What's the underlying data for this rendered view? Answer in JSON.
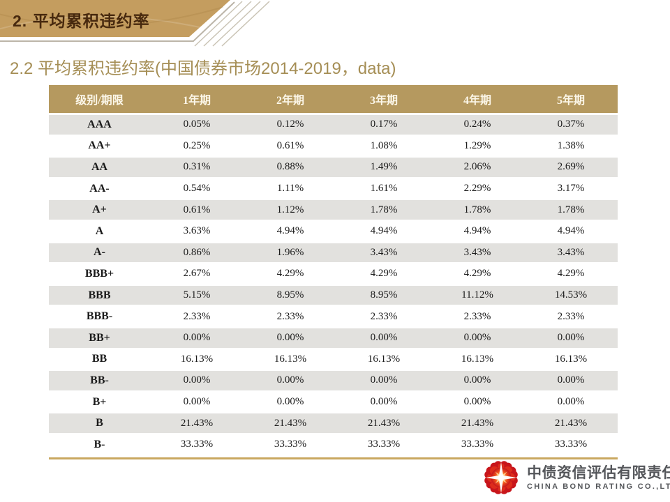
{
  "banner": {
    "title": "2. 平均累积违约率"
  },
  "subtitle": "2.2 平均累积违约率(中国债券市场2014-2019，data)",
  "table": {
    "headers": [
      "级别/期限",
      "1年期",
      "2年期",
      "3年期",
      "4年期",
      "5年期"
    ],
    "rows": [
      {
        "label": "AAA",
        "values": [
          "0.05%",
          "0.12%",
          "0.17%",
          "0.24%",
          "0.37%"
        ]
      },
      {
        "label": "AA+",
        "values": [
          "0.25%",
          "0.61%",
          "1.08%",
          "1.29%",
          "1.38%"
        ]
      },
      {
        "label": "AA",
        "values": [
          "0.31%",
          "0.88%",
          "1.49%",
          "2.06%",
          "2.69%"
        ]
      },
      {
        "label": "AA-",
        "values": [
          "0.54%",
          "1.11%",
          "1.61%",
          "2.29%",
          "3.17%"
        ]
      },
      {
        "label": "A+",
        "values": [
          "0.61%",
          "1.12%",
          "1.78%",
          "1.78%",
          "1.78%"
        ]
      },
      {
        "label": "A",
        "values": [
          "3.63%",
          "4.94%",
          "4.94%",
          "4.94%",
          "4.94%"
        ]
      },
      {
        "label": "A-",
        "values": [
          "0.86%",
          "1.96%",
          "3.43%",
          "3.43%",
          "3.43%"
        ]
      },
      {
        "label": "BBB+",
        "values": [
          "2.67%",
          "4.29%",
          "4.29%",
          "4.29%",
          "4.29%"
        ]
      },
      {
        "label": "BBB",
        "values": [
          "5.15%",
          "8.95%",
          "8.95%",
          "11.12%",
          "14.53%"
        ]
      },
      {
        "label": "BBB-",
        "values": [
          "2.33%",
          "2.33%",
          "2.33%",
          "2.33%",
          "2.33%"
        ]
      },
      {
        "label": "BB+",
        "values": [
          "0.00%",
          "0.00%",
          "0.00%",
          "0.00%",
          "0.00%"
        ]
      },
      {
        "label": "BB",
        "values": [
          "16.13%",
          "16.13%",
          "16.13%",
          "16.13%",
          "16.13%"
        ]
      },
      {
        "label": "BB-",
        "values": [
          "0.00%",
          "0.00%",
          "0.00%",
          "0.00%",
          "0.00%"
        ]
      },
      {
        "label": "B+",
        "values": [
          "0.00%",
          "0.00%",
          "0.00%",
          "0.00%",
          "0.00%"
        ]
      },
      {
        "label": "B",
        "values": [
          "21.43%",
          "21.43%",
          "21.43%",
          "21.43%",
          "21.43%"
        ]
      },
      {
        "label": "B-",
        "values": [
          "33.33%",
          "33.33%",
          "33.33%",
          "33.33%",
          "33.33%"
        ]
      }
    ]
  },
  "footer": {
    "company_cn": "中债资信评估有限责任公司",
    "company_en": "CHINA BOND RATING CO.,LTD",
    "logo": "flower-logo"
  },
  "colors": {
    "banner_gold": "#c49d5f",
    "banner_title_text": "#47290e",
    "subtitle_text": "#a58e55",
    "table_header_bg": "#b5995f",
    "table_header_text": "#fcf7e9",
    "row_alt_bg": "#e2e1de",
    "cell_text": "#1b1b1b",
    "accent_line": "#c9a75f",
    "logo_red": "#d2251c",
    "company_text": "#54565a"
  }
}
